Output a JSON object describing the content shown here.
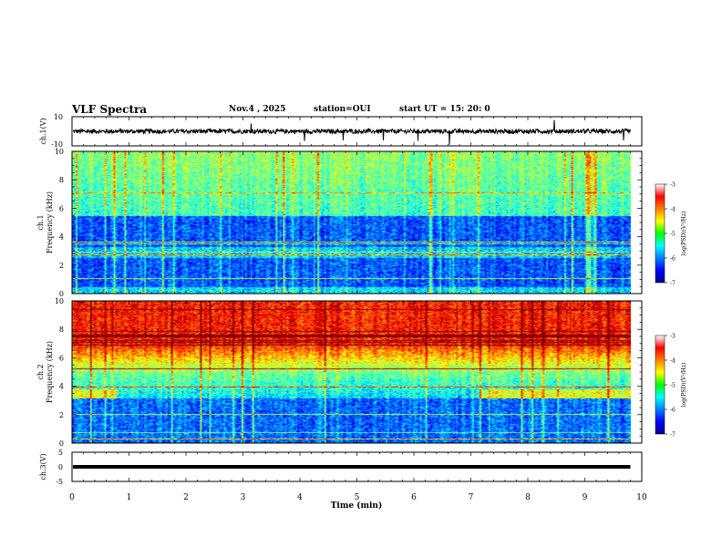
{
  "header": {
    "title": "VLF Spectra",
    "date": "Nov.4 , 2025",
    "station": "station=OUI",
    "start_ut": "start  UT =   15: 20: 0"
  },
  "chart_data": [
    {
      "type": "line",
      "name": "ch1-waveform",
      "ylabel": "ch.1(V)",
      "ylim": [
        -10,
        10
      ],
      "yticks": [
        "10",
        "-10"
      ],
      "xlim": [
        0,
        10
      ],
      "description_values": {
        "baseline_v": 0,
        "noise_amplitude_v": 1.5
      },
      "line_end_min": 9.8
    },
    {
      "type": "heatmap",
      "name": "ch1-spectrogram",
      "ylabel_line1": "ch.1",
      "ylabel_line2": "Frequency (kHz)",
      "ylim": [
        0,
        10
      ],
      "yticks": [
        "0",
        "2",
        "4",
        "6",
        "8",
        "10"
      ],
      "xlim": [
        0,
        10
      ],
      "data_end_min": 9.8,
      "colorbar": {
        "label": "log(PSD)(V²/Hz)",
        "min": -7,
        "max": -3,
        "ticks": [
          "-3",
          "-4",
          "-5",
          "-6",
          "-7"
        ]
      }
    },
    {
      "type": "heatmap",
      "name": "ch2-spectrogram",
      "ylabel_line1": "ch.2",
      "ylabel_line2": "Frequency (kHz)",
      "ylim": [
        0,
        10
      ],
      "yticks": [
        "0",
        "2",
        "4",
        "6",
        "8",
        "10"
      ],
      "xlim": [
        0,
        10
      ],
      "data_end_min": 9.8,
      "colorbar": {
        "label": "log(PSD)(V²/Hz)",
        "min": -7,
        "max": -3,
        "ticks": [
          "-3",
          "-4",
          "-5",
          "-6",
          "-7"
        ]
      }
    },
    {
      "type": "line",
      "name": "ch3-waveform",
      "ylabel": "ch.3(V)",
      "ylim": [
        -5,
        5
      ],
      "yticks": [
        "5",
        "0",
        "-5"
      ],
      "xlim": [
        0,
        10
      ],
      "constant_value_v": 0,
      "line_end_min": 9.8
    }
  ],
  "xaxis": {
    "label": "Time (min)",
    "ticks": [
      "0",
      "1",
      "2",
      "3",
      "4",
      "5",
      "6",
      "7",
      "8",
      "9",
      "10"
    ]
  }
}
